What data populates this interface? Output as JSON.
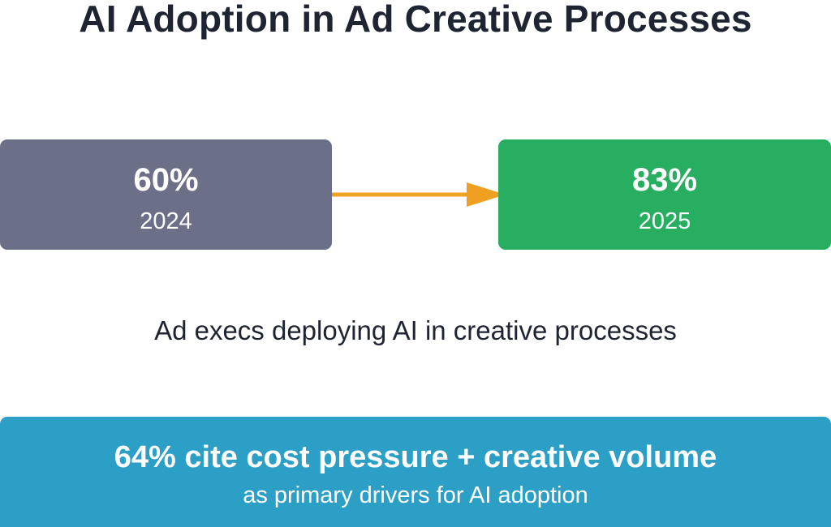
{
  "title": "AI Adoption in Ad Creative Processes",
  "from": {
    "value": "60%",
    "year": "2024"
  },
  "to": {
    "value": "83%",
    "year": "2025"
  },
  "caption": "Ad execs deploying AI in creative processes",
  "banner": {
    "headline": "64% cite cost pressure + creative volume",
    "subtext": "as primary drivers for AI adoption"
  },
  "colors": {
    "from_box": "#6b7088",
    "to_box": "#27ae60",
    "arrow": "#f0a020",
    "banner": "#2b9fc6",
    "title_text": "#1f2433"
  }
}
